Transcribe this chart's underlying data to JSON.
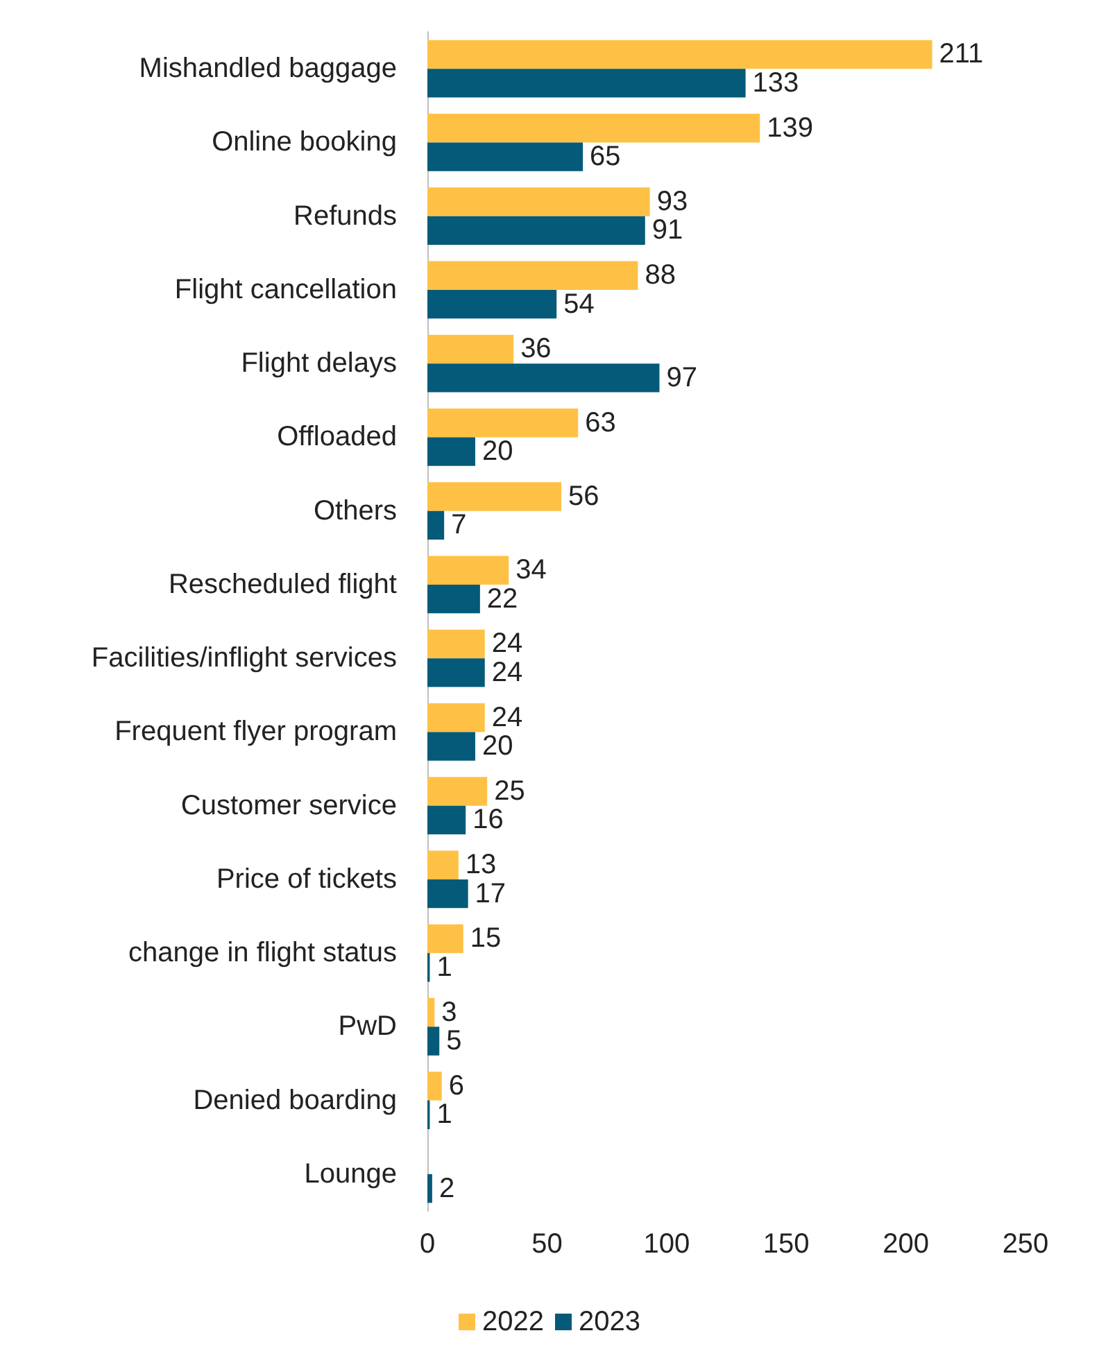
{
  "chart_data": {
    "type": "bar",
    "orientation": "horizontal",
    "categories": [
      "Mishandled baggage",
      "Online booking",
      "Refunds",
      "Flight cancellation",
      "Flight delays",
      "Offloaded",
      "Others",
      "Rescheduled flight",
      "Facilities/inflight services",
      "Frequent flyer program",
      "Customer service",
      "Price of tickets",
      "change in flight status",
      "PwD",
      "Denied boarding",
      "Lounge"
    ],
    "series": [
      {
        "name": "2022",
        "color": "#ffc145",
        "values": [
          211,
          139,
          93,
          88,
          36,
          63,
          56,
          34,
          24,
          24,
          25,
          13,
          15,
          3,
          6,
          null
        ]
      },
      {
        "name": "2023",
        "color": "#045a78",
        "values": [
          133,
          65,
          91,
          54,
          97,
          20,
          7,
          22,
          24,
          20,
          16,
          17,
          1,
          5,
          1,
          2
        ]
      }
    ],
    "xlim": [
      0,
      250
    ],
    "xticks": [
      0,
      50,
      100,
      150,
      200,
      250
    ],
    "grid": false,
    "legend": "bottom",
    "data_labels": true
  }
}
